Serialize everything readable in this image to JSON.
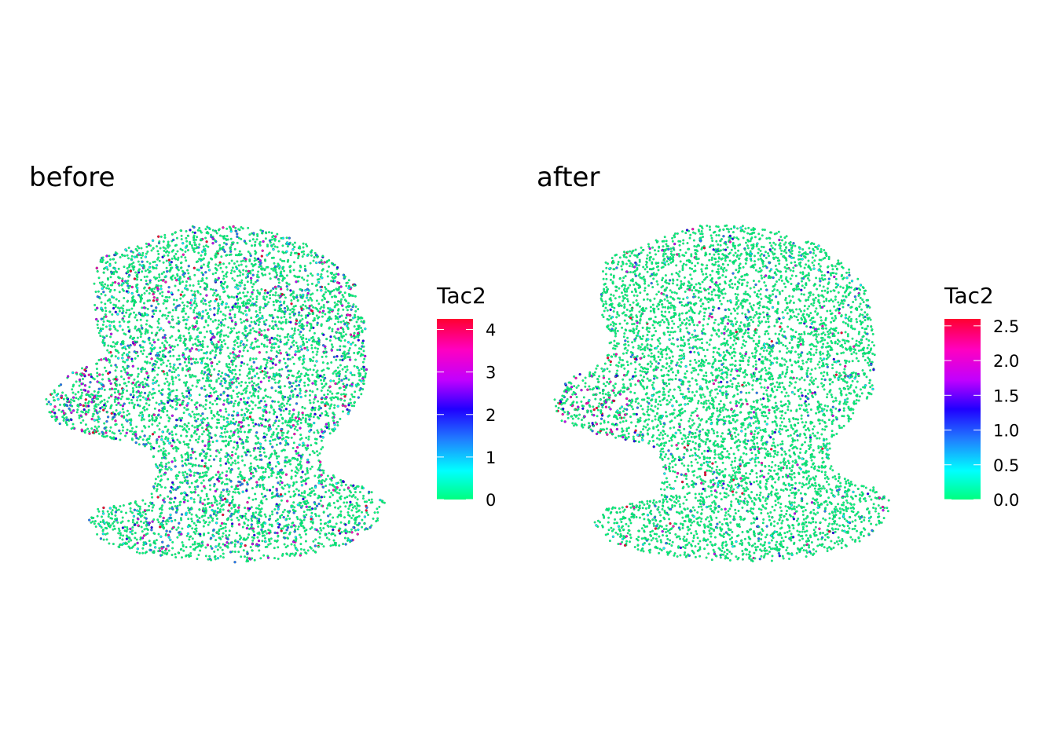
{
  "chart_data": [
    {
      "type": "scatter",
      "title": "before",
      "legend": {
        "title": "Tac2",
        "placement": "right",
        "range": [
          0,
          4.25
        ],
        "ticks": [
          "0",
          "1",
          "2",
          "3",
          "4"
        ],
        "tick_values": [
          0,
          1,
          2,
          3,
          4
        ]
      },
      "colorscale": [
        "#00ff7f",
        "#00ffff",
        "#2060ff",
        "#2000ff",
        "#c000ff",
        "#ff00c0",
        "#ff0030"
      ],
      "axes": "none",
      "grid": false,
      "points": {
        "approx_count": 6000,
        "majority_value": 0,
        "high_value_fraction": 0.09
      }
    },
    {
      "type": "scatter",
      "title": "after",
      "legend": {
        "title": "Tac2",
        "placement": "right",
        "range": [
          0,
          2.6
        ],
        "ticks": [
          "0.0",
          "0.5",
          "1.0",
          "1.5",
          "2.0",
          "2.5"
        ],
        "tick_values": [
          0,
          0.5,
          1.0,
          1.5,
          2.0,
          2.5
        ]
      },
      "colorscale": [
        "#00ff7f",
        "#00ffff",
        "#2060ff",
        "#2000ff",
        "#c000ff",
        "#ff00c0",
        "#ff0030"
      ],
      "axes": "none",
      "grid": false,
      "points": {
        "approx_count": 6000,
        "majority_value": 0,
        "high_value_fraction": 0.04
      }
    }
  ]
}
